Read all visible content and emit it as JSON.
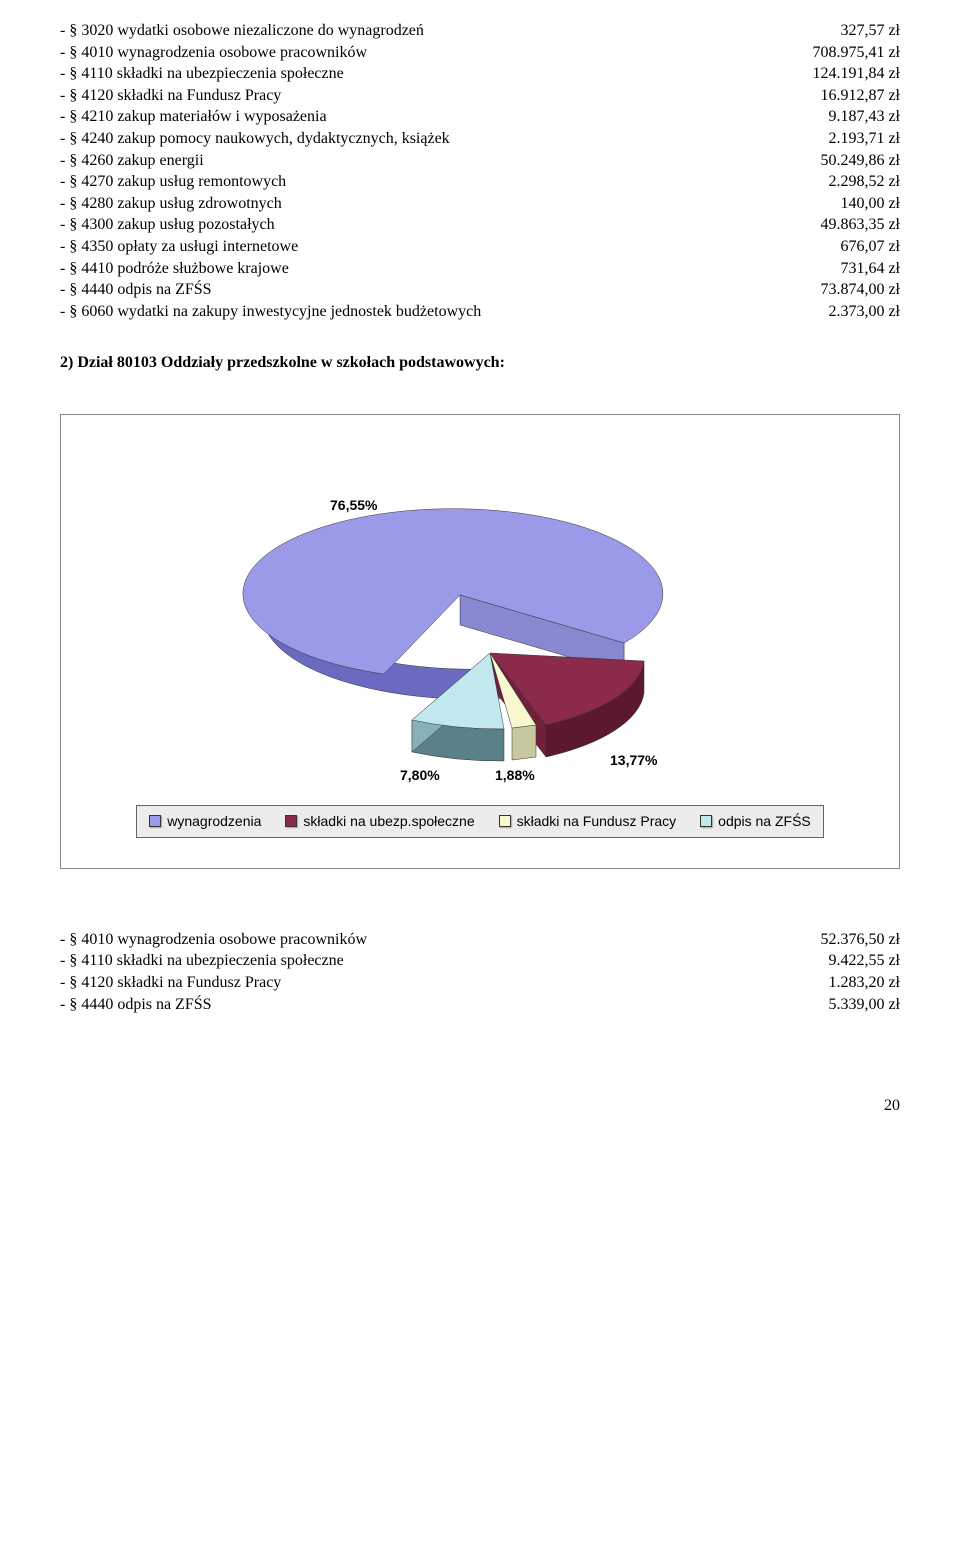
{
  "top_list": [
    {
      "label": "- § 3020 wydatki osobowe niezaliczone do wynagrodzeń",
      "value": "327,57 zł"
    },
    {
      "label": "- § 4010 wynagrodzenia osobowe pracowników",
      "value": "708.975,41 zł"
    },
    {
      "label": "- § 4110 składki na ubezpieczenia społeczne",
      "value": "124.191,84 zł"
    },
    {
      "label": "- § 4120 składki na Fundusz Pracy",
      "value": "16.912,87 zł"
    },
    {
      "label": "- § 4210 zakup materiałów i wyposażenia",
      "value": "9.187,43 zł"
    },
    {
      "label": "- § 4240 zakup pomocy naukowych, dydaktycznych, książek",
      "value": "2.193,71 zł"
    },
    {
      "label": "- § 4260 zakup energii",
      "value": "50.249,86 zł"
    },
    {
      "label": "- § 4270 zakup usług remontowych",
      "value": "2.298,52 zł"
    },
    {
      "label": "- § 4280 zakup usług zdrowotnych",
      "value": "140,00 zł"
    },
    {
      "label": "- § 4300 zakup usług pozostałych",
      "value": "49.863,35 zł"
    },
    {
      "label": "- § 4350 opłaty za usługi internetowe",
      "value": "676,07 zł"
    },
    {
      "label": "- § 4410 podróże służbowe krajowe",
      "value": "731,64 zł"
    },
    {
      "label": "- § 4440 odpis na ZFŚS",
      "value": "73.874,00 zł"
    },
    {
      "label": "- § 6060 wydatki na zakupy inwestycyjne jednostek budżetowych",
      "value": "2.373,00 zł"
    }
  ],
  "section_heading": "2)  Dział 80103 Oddziały przedszkolne w szkołach podstawowych:",
  "chart": {
    "type": "pie-3d-exploded",
    "background_color": "#ffffff",
    "frame_border_color": "#888888",
    "legend_bg": "#ececec",
    "slices": [
      {
        "name": "wynagrodzenia",
        "value": 76.55,
        "label": "76,55%",
        "color": "#9a9ae8",
        "side_color": "#6a6ac0"
      },
      {
        "name": "składki na ubezp.społeczne",
        "value": 13.77,
        "label": "13,77%",
        "color": "#8b2a4a",
        "side_color": "#5b1830"
      },
      {
        "name": "składki na Fundusz Pracy",
        "value": 1.88,
        "label": "1,88%",
        "color": "#f7f7d0",
        "side_color": "#c8c8a0"
      },
      {
        "name": "odpis na ZFŚS",
        "value": 7.8,
        "label": "7,80%",
        "color": "#c0e8ee",
        "side_color": "#5a8088"
      }
    ],
    "label_font_family": "Arial",
    "label_font_size": 14,
    "label_font_weight": "bold"
  },
  "bottom_list": [
    {
      "label": "- § 4010 wynagrodzenia osobowe pracowników",
      "value": "52.376,50 zł"
    },
    {
      "label": "- § 4110 składki na ubezpieczenia społeczne",
      "value": "9.422,55 zł"
    },
    {
      "label": "- § 4120 składki na Fundusz Pracy",
      "value": "1.283,20 zł"
    },
    {
      "label": "- § 4440 odpis na ZFŚS",
      "value": "5.339,00 zł"
    }
  ],
  "page_number": "20"
}
